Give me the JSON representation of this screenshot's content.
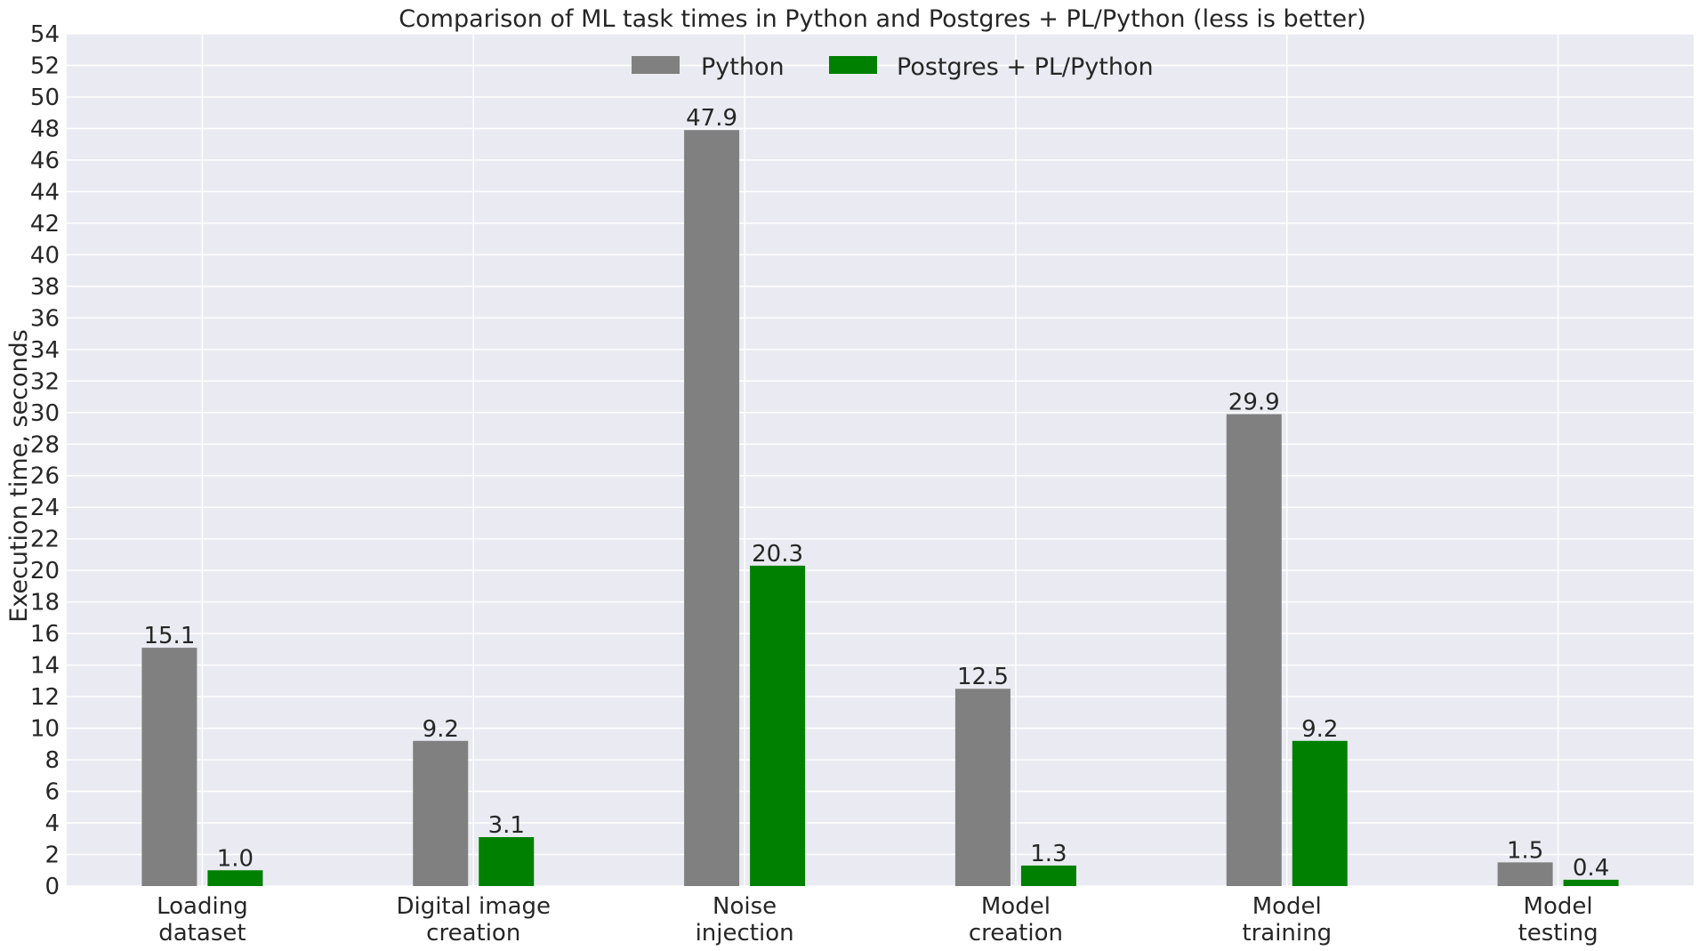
{
  "chart_data": {
    "type": "bar",
    "title": "Comparison of ML task times in Python and Postgres + PL/Python (less is better)",
    "xlabel": "",
    "ylabel": "Execution time, seconds",
    "ylim": [
      0,
      54
    ],
    "ytick_step": 2,
    "grid": true,
    "legend_position": "top-center",
    "categories": [
      [
        "Loading",
        "dataset"
      ],
      [
        "Digital image",
        "creation"
      ],
      [
        "Noise",
        "injection"
      ],
      [
        "Model",
        "creation"
      ],
      [
        "Model",
        "training"
      ],
      [
        "Model",
        "testing"
      ]
    ],
    "series": [
      {
        "name": "Python",
        "color": "#808080",
        "values": [
          15.1,
          9.2,
          47.9,
          12.5,
          29.9,
          1.5
        ],
        "labels": [
          "15.1",
          "9.2",
          "47.9",
          "12.5",
          "29.9",
          "1.5"
        ]
      },
      {
        "name": "Postgres + PL/Python",
        "color": "#008000",
        "values": [
          1.0,
          3.1,
          20.3,
          1.3,
          9.2,
          0.4
        ],
        "labels": [
          "1.0",
          "3.1",
          "20.3",
          "1.3",
          "9.2",
          "0.4"
        ]
      }
    ]
  },
  "colors": {
    "plot_background": "#eaeaf2",
    "grid": "#ffffff",
    "text": "#262626"
  }
}
